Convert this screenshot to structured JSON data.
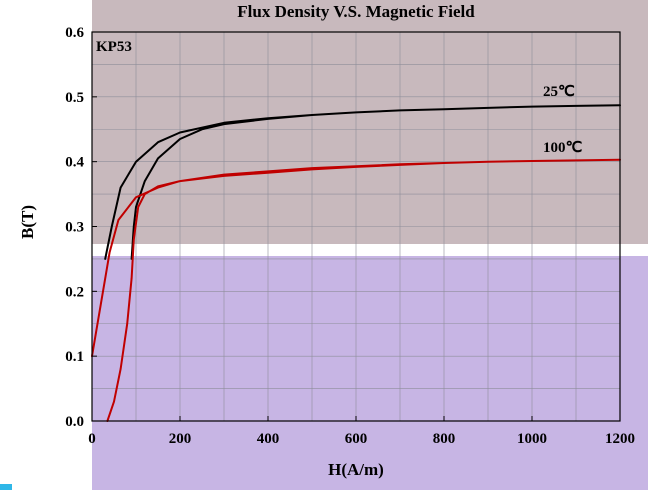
{
  "chart_data": {
    "type": "line",
    "title": "Flux Density V.S. Magnetic Field",
    "xlabel": "H(A/m)",
    "ylabel": "B(T)",
    "xlim": [
      0,
      1200
    ],
    "ylim": [
      0.0,
      0.6
    ],
    "x_ticks": [
      "0",
      "200",
      "400",
      "600",
      "800",
      "1000",
      "1200"
    ],
    "y_ticks": [
      "0.0",
      "0.1",
      "0.2",
      "0.3",
      "0.4",
      "0.5",
      "0.6"
    ],
    "grid": true,
    "material_label": "KP53",
    "series": [
      {
        "name": "25℃",
        "color": "#000000",
        "x": [
          30,
          45,
          65,
          100,
          150,
          200,
          300,
          400,
          500,
          600,
          700,
          800,
          900,
          1000,
          1100,
          1200,
          1100,
          1000,
          900,
          800,
          700,
          600,
          500,
          400,
          300,
          250,
          200,
          150,
          120,
          100,
          95,
          90
        ],
        "y": [
          0.25,
          0.3,
          0.36,
          0.4,
          0.43,
          0.445,
          0.46,
          0.467,
          0.472,
          0.476,
          0.479,
          0.481,
          0.483,
          0.485,
          0.486,
          0.487,
          0.486,
          0.485,
          0.483,
          0.481,
          0.479,
          0.476,
          0.472,
          0.466,
          0.458,
          0.45,
          0.435,
          0.405,
          0.37,
          0.33,
          0.3,
          0.25
        ]
      },
      {
        "name": "100℃",
        "color": "#c00000",
        "x": [
          0,
          10,
          20,
          30,
          40,
          60,
          100,
          150,
          200,
          300,
          400,
          500,
          600,
          700,
          800,
          900,
          1000,
          1100,
          1200,
          1100,
          1000,
          900,
          800,
          700,
          600,
          500,
          400,
          300,
          200,
          150,
          120,
          105,
          95,
          90,
          80,
          65,
          50,
          35
        ],
        "y": [
          0.1,
          0.14,
          0.18,
          0.22,
          0.26,
          0.31,
          0.345,
          0.36,
          0.37,
          0.38,
          0.385,
          0.39,
          0.393,
          0.396,
          0.398,
          0.4,
          0.401,
          0.402,
          0.403,
          0.402,
          0.401,
          0.4,
          0.398,
          0.395,
          0.392,
          0.388,
          0.383,
          0.378,
          0.37,
          0.362,
          0.35,
          0.33,
          0.28,
          0.22,
          0.15,
          0.08,
          0.03,
          0.0
        ]
      }
    ]
  }
}
